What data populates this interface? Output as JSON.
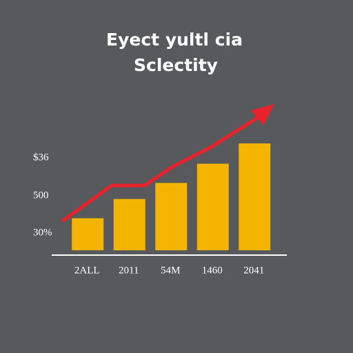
{
  "chart_data": {
    "type": "bar",
    "title": "Eyect yultl cia",
    "subtitle": "Sclectity",
    "y_labels": [
      "$36",
      "500",
      "30%"
    ],
    "categories": [
      "2ALL",
      "2011",
      "54M",
      "1460",
      "2041"
    ],
    "values": [
      30,
      48,
      63,
      81,
      100
    ],
    "color": "#f5b400",
    "ylim": [
      0,
      100
    ]
  }
}
